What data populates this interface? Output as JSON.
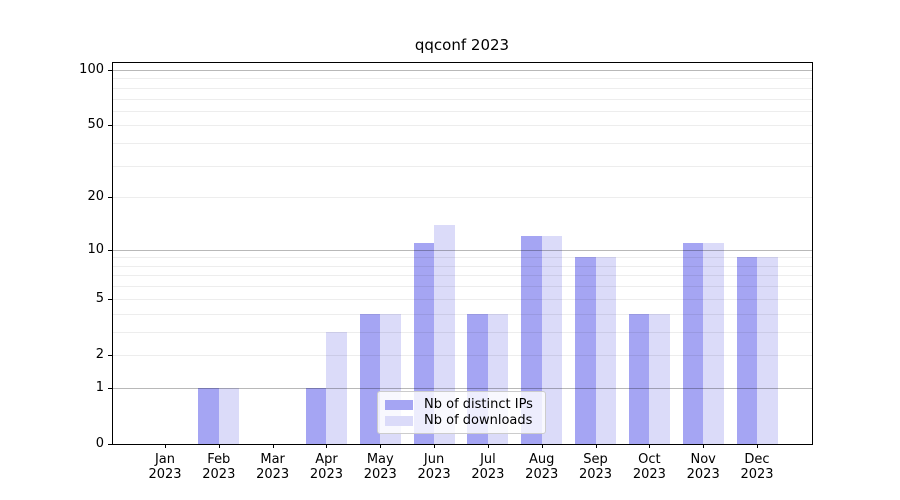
{
  "chart_data": {
    "type": "bar",
    "title": "qqconf 2023",
    "categories": [
      "Jan",
      "Feb",
      "Mar",
      "Apr",
      "May",
      "Jun",
      "Jul",
      "Aug",
      "Sep",
      "Oct",
      "Nov",
      "Dec"
    ],
    "year_label": "2023",
    "series": [
      {
        "name": "Nb of distinct IPs",
        "color": "#a5a5f3",
        "values": [
          0,
          1,
          0,
          1,
          4,
          11,
          4,
          12,
          9,
          4,
          11,
          9
        ]
      },
      {
        "name": "Nb of downloads",
        "color": "#dbdbf9",
        "values": [
          0,
          1,
          0,
          3,
          4,
          14,
          4,
          12,
          9,
          4,
          11,
          9
        ]
      }
    ],
    "xlabel": "",
    "ylabel": "",
    "y_axis": {
      "scale": "log1p",
      "ylim": [
        0,
        111
      ],
      "ticks": [
        0,
        1,
        2,
        5,
        10,
        20,
        50,
        100
      ],
      "major_gridlines": [
        1,
        10,
        100
      ],
      "minor_gridlines": [
        2,
        3,
        4,
        5,
        6,
        7,
        8,
        9,
        20,
        30,
        40,
        50,
        60,
        70,
        80,
        90
      ]
    },
    "legend": {
      "position": "lower center"
    },
    "grid": true,
    "grid_above_bars": true
  }
}
